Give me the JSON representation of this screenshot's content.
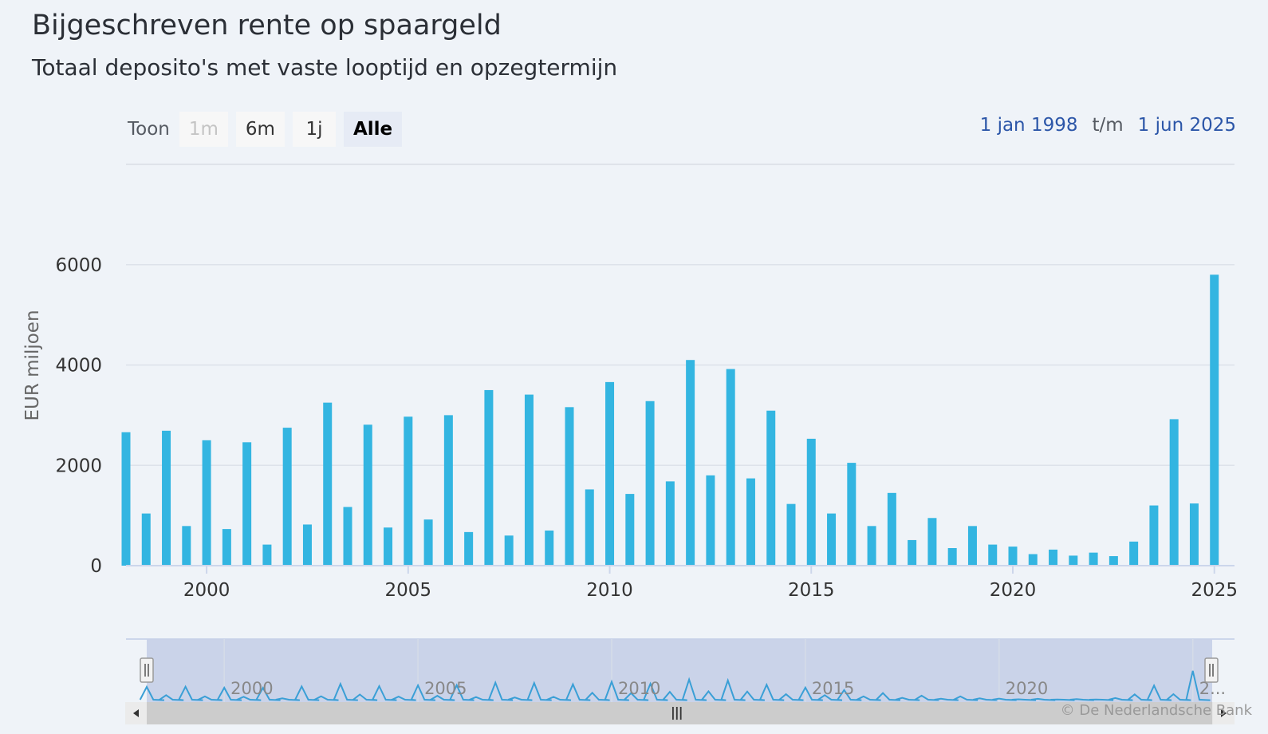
{
  "title": "Bijgeschreven rente op spaargeld",
  "subtitle": "Totaal deposito's met vaste looptijd en opzegtermijn",
  "range_selector": {
    "label": "Toon",
    "buttons": [
      {
        "label": "1m",
        "state": "disabled"
      },
      {
        "label": "6m",
        "state": "normal"
      },
      {
        "label": "1j",
        "state": "normal"
      },
      {
        "label": "Alle",
        "state": "active"
      }
    ]
  },
  "date_range": {
    "from": "1 jan 1998",
    "separator": "t/m",
    "to": "1 jun 2025"
  },
  "credits": "© De Nederlandsche Bank",
  "navigator": {
    "tick_labels": [
      "2000",
      "2005",
      "2010",
      "2015",
      "2020",
      "2..."
    ],
    "scrollbar_grip": "|||"
  },
  "colors": {
    "bar": "#33b5e1",
    "navigator_line": "#3a9fd6",
    "navigator_mask": "#c7d1e8"
  },
  "chart_data": {
    "type": "bar",
    "ylabel": "EUR miljoen",
    "ylim": [
      0,
      8000
    ],
    "yticks": [
      "0",
      "2000",
      "4000",
      "6000"
    ],
    "xticks": [
      "2000",
      "2005",
      "2010",
      "2015",
      "2020",
      "2025"
    ],
    "xlim": [
      "1998-01",
      "2025-07"
    ],
    "grid": true,
    "series": [
      {
        "values": [
          {
            "x": "1998-01",
            "y": 2660
          },
          {
            "x": "1998-07",
            "y": 1040
          },
          {
            "x": "1999-01",
            "y": 2690
          },
          {
            "x": "1999-07",
            "y": 790
          },
          {
            "x": "2000-01",
            "y": 2500
          },
          {
            "x": "2000-07",
            "y": 730
          },
          {
            "x": "2001-01",
            "y": 2460
          },
          {
            "x": "2001-07",
            "y": 420
          },
          {
            "x": "2002-01",
            "y": 2750
          },
          {
            "x": "2002-07",
            "y": 820
          },
          {
            "x": "2003-01",
            "y": 3250
          },
          {
            "x": "2003-07",
            "y": 1170
          },
          {
            "x": "2004-01",
            "y": 2810
          },
          {
            "x": "2004-07",
            "y": 760
          },
          {
            "x": "2005-01",
            "y": 2970
          },
          {
            "x": "2005-07",
            "y": 920
          },
          {
            "x": "2006-01",
            "y": 3000
          },
          {
            "x": "2006-07",
            "y": 670
          },
          {
            "x": "2007-01",
            "y": 3500
          },
          {
            "x": "2007-07",
            "y": 600
          },
          {
            "x": "2008-01",
            "y": 3410
          },
          {
            "x": "2008-07",
            "y": 700
          },
          {
            "x": "2009-01",
            "y": 3160
          },
          {
            "x": "2009-07",
            "y": 1520
          },
          {
            "x": "2010-01",
            "y": 3660
          },
          {
            "x": "2010-07",
            "y": 1430
          },
          {
            "x": "2011-01",
            "y": 3280
          },
          {
            "x": "2011-07",
            "y": 1680
          },
          {
            "x": "2012-01",
            "y": 4100
          },
          {
            "x": "2012-07",
            "y": 1800
          },
          {
            "x": "2013-01",
            "y": 3920
          },
          {
            "x": "2013-07",
            "y": 1740
          },
          {
            "x": "2014-01",
            "y": 3090
          },
          {
            "x": "2014-07",
            "y": 1230
          },
          {
            "x": "2015-01",
            "y": 2530
          },
          {
            "x": "2015-07",
            "y": 1040
          },
          {
            "x": "2016-01",
            "y": 2050
          },
          {
            "x": "2016-07",
            "y": 790
          },
          {
            "x": "2017-01",
            "y": 1450
          },
          {
            "x": "2017-07",
            "y": 510
          },
          {
            "x": "2018-01",
            "y": 950
          },
          {
            "x": "2018-07",
            "y": 350
          },
          {
            "x": "2019-01",
            "y": 790
          },
          {
            "x": "2019-07",
            "y": 420
          },
          {
            "x": "2020-01",
            "y": 380
          },
          {
            "x": "2020-07",
            "y": 230
          },
          {
            "x": "2021-01",
            "y": 320
          },
          {
            "x": "2021-07",
            "y": 200
          },
          {
            "x": "2022-01",
            "y": 260
          },
          {
            "x": "2022-07",
            "y": 190
          },
          {
            "x": "2023-01",
            "y": 480
          },
          {
            "x": "2023-07",
            "y": 1200
          },
          {
            "x": "2024-01",
            "y": 2920
          },
          {
            "x": "2024-07",
            "y": 1240
          },
          {
            "x": "2025-01",
            "y": 5800
          }
        ]
      }
    ]
  }
}
